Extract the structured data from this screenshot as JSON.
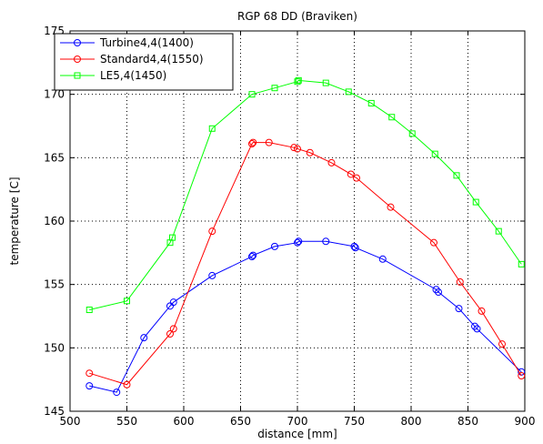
{
  "chart_data": {
    "type": "line",
    "title": "RGP 68 DD (Braviken)",
    "xlabel": "distance [mm]",
    "ylabel": "temperature [C]",
    "xlim": [
      500,
      900
    ],
    "ylim": [
      145,
      175
    ],
    "xticks": [
      500,
      550,
      600,
      650,
      700,
      750,
      800,
      850,
      900
    ],
    "yticks": [
      145,
      150,
      155,
      160,
      165,
      170,
      175
    ],
    "grid": true,
    "legend_position": "top-left",
    "series": [
      {
        "name": "Turbine4,4(1400)",
        "color": "#0000ff",
        "marker": "circle",
        "x": [
          517,
          541,
          565,
          588,
          591,
          625,
          660,
          661,
          680,
          700,
          701,
          725,
          750,
          751,
          775,
          822,
          824,
          842,
          856,
          858,
          897
        ],
        "y": [
          147.0,
          146.5,
          150.8,
          153.3,
          153.6,
          155.7,
          157.2,
          157.3,
          158.0,
          158.3,
          158.4,
          158.4,
          158.0,
          157.9,
          157.0,
          154.6,
          154.4,
          153.1,
          151.7,
          151.5,
          148.1
        ]
      },
      {
        "name": "Standard4,4(1550)",
        "color": "#ff0000",
        "marker": "circle",
        "x": [
          517,
          550,
          588,
          591,
          625,
          660,
          661,
          675,
          697,
          700,
          711,
          730,
          747,
          752,
          782,
          820,
          843,
          862,
          880,
          897
        ],
        "y": [
          148.0,
          147.1,
          151.1,
          151.5,
          159.2,
          166.1,
          166.2,
          166.2,
          165.8,
          165.7,
          165.4,
          164.6,
          163.7,
          163.4,
          161.1,
          158.3,
          155.2,
          152.9,
          150.3,
          147.8
        ]
      },
      {
        "name": "LE5,4(1450)",
        "color": "#00ff00",
        "marker": "square",
        "x": [
          517,
          550,
          588,
          590,
          625,
          660,
          680,
          700,
          701,
          725,
          745,
          765,
          783,
          801,
          821,
          840,
          857,
          877,
          897
        ],
        "y": [
          153.0,
          153.7,
          158.3,
          158.7,
          167.3,
          170.0,
          170.5,
          171.0,
          171.1,
          170.9,
          170.2,
          169.3,
          168.2,
          166.9,
          165.3,
          163.6,
          161.5,
          159.2,
          156.6
        ]
      }
    ]
  }
}
